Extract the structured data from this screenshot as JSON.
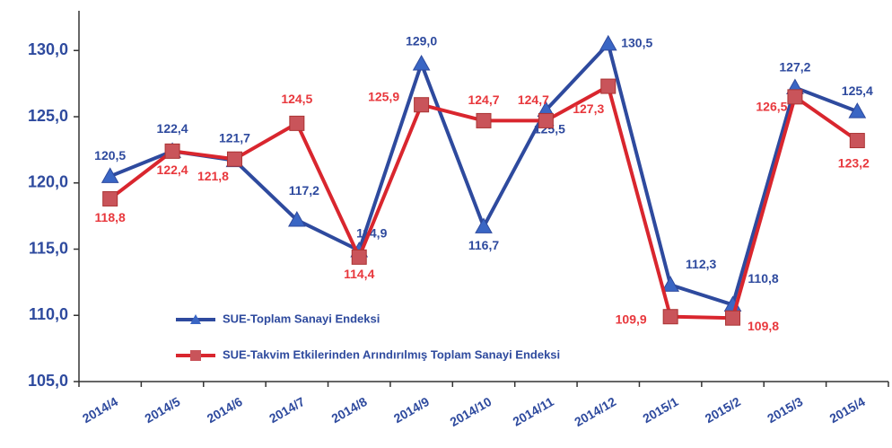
{
  "chart_data": {
    "type": "line",
    "categories": [
      "2014/4",
      "2014/5",
      "2014/6",
      "2014/7",
      "2014/8",
      "2014/9",
      "2014/10",
      "2014/11",
      "2014/12",
      "2015/1",
      "2015/2",
      "2015/3",
      "2015/4"
    ],
    "series": [
      {
        "name": "SUE-Toplam Sanayi Endeksi",
        "color": "#2e4a9e",
        "marker": "triangle",
        "values": [
          120.5,
          122.4,
          121.7,
          117.2,
          114.9,
          129.0,
          116.7,
          125.5,
          130.5,
          112.3,
          110.8,
          127.2,
          125.4
        ],
        "value_labels": [
          "120,5",
          "122,4",
          "121,7",
          "117,2",
          "114,9",
          "129,0",
          "116,7",
          "125,5",
          "130,5",
          "112,3",
          "110,8",
          "127,2",
          "125,4"
        ]
      },
      {
        "name": "SUE-Takvim Etkilerinden Arındırılmış Toplam Sanayi Endeksi",
        "color": "#d9262e",
        "marker": "square",
        "values": [
          118.8,
          122.4,
          121.8,
          124.5,
          114.4,
          125.9,
          124.7,
          124.7,
          127.3,
          109.9,
          109.8,
          126.5,
          123.2
        ],
        "value_labels": [
          "118,8",
          "122,4",
          "121,8",
          "124,5",
          "114,4",
          "125,9",
          "124,7",
          "124,7",
          "127,3",
          "109,9",
          "109,8",
          "126,5",
          "123,2"
        ]
      }
    ],
    "ylim": [
      105,
      133
    ],
    "yticks": [
      {
        "value": 105,
        "label": "105,0"
      },
      {
        "value": 110,
        "label": "110,0"
      },
      {
        "value": 115,
        "label": "115,0"
      },
      {
        "value": 120,
        "label": "120,0"
      },
      {
        "value": 125,
        "label": "125,0"
      },
      {
        "value": 130,
        "label": "130,0"
      }
    ],
    "grid": false
  }
}
